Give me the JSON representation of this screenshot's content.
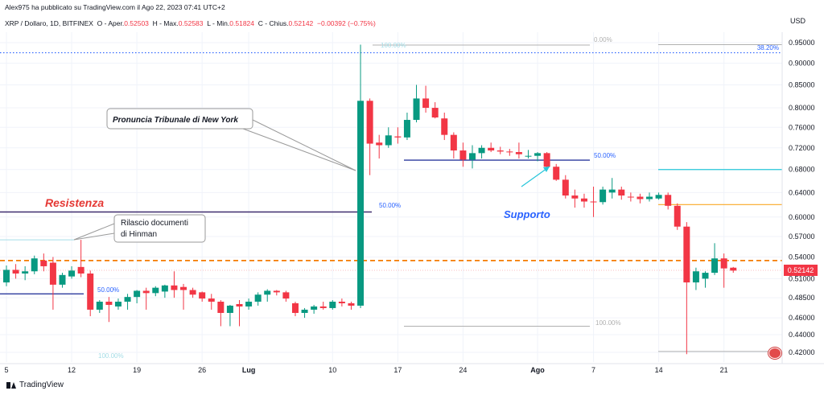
{
  "header": {
    "published": "Alex975 ha pubblicato su TradingView.com il Ago 22, 2023 07:41 UTC+2",
    "symbol": "XRP / Dollaro, 1D, BITFINEX",
    "open_label": "O - Aper.",
    "open_value": "0.52503",
    "high_label": "H - Max.",
    "high_value": "0.52583",
    "low_label": "L - Min.",
    "low_value": "0.51824",
    "close_label": "C - Chius.",
    "close_value": "0.52142",
    "change": "−0.00392 (−0.75%)"
  },
  "currency": "USD",
  "brand": "TradingView",
  "colors": {
    "up": "#089981",
    "down": "#f23645",
    "resistance": "#3f2c6e",
    "support": "#2c3a9e",
    "orange": "#f57c00",
    "annotation_blue": "#2962ff",
    "annotation_red": "#e53935",
    "cyan": "#26c6da",
    "gold": "#f9a825"
  },
  "chart_data": {
    "type": "candlestick",
    "symbol": "XRP / Dollaro",
    "timeframe": "1D",
    "y_axis": {
      "ticks": [
        "0.42000",
        "0.44000",
        "0.46000",
        "0.48500",
        "0.51000",
        "0.54000",
        "0.57000",
        "0.60000",
        "0.64000",
        "0.68000",
        "0.72000",
        "0.76000",
        "0.80000",
        "0.85000",
        "0.90000",
        "0.95000"
      ],
      "scale": "log",
      "last_price_label": "0.52142"
    },
    "x_axis": {
      "ticks": [
        {
          "label": "5",
          "day": 0
        },
        {
          "label": "12",
          "day": 7
        },
        {
          "label": "19",
          "day": 14
        },
        {
          "label": "26",
          "day": 21
        },
        {
          "label": "Lug",
          "day": 26
        },
        {
          "label": "10",
          "day": 35
        },
        {
          "label": "17",
          "day": 42
        },
        {
          "label": "24",
          "day": 49
        },
        {
          "label": "Ago",
          "day": 57
        },
        {
          "label": "7",
          "day": 63
        },
        {
          "label": "14",
          "day": 70
        },
        {
          "label": "21",
          "day": 77
        }
      ]
    },
    "candles": [
      {
        "o": 0.505,
        "h": 0.528,
        "l": 0.5,
        "c": 0.522
      },
      {
        "o": 0.522,
        "h": 0.53,
        "l": 0.51,
        "c": 0.517
      },
      {
        "o": 0.517,
        "h": 0.527,
        "l": 0.508,
        "c": 0.52
      },
      {
        "o": 0.52,
        "h": 0.542,
        "l": 0.516,
        "c": 0.538
      },
      {
        "o": 0.535,
        "h": 0.545,
        "l": 0.52,
        "c": 0.527
      },
      {
        "o": 0.532,
        "h": 0.54,
        "l": 0.47,
        "c": 0.502
      },
      {
        "o": 0.502,
        "h": 0.518,
        "l": 0.498,
        "c": 0.515
      },
      {
        "o": 0.513,
        "h": 0.527,
        "l": 0.51,
        "c": 0.521
      },
      {
        "o": 0.526,
        "h": 0.565,
        "l": 0.512,
        "c": 0.517
      },
      {
        "o": 0.517,
        "h": 0.521,
        "l": 0.462,
        "c": 0.47
      },
      {
        "o": 0.47,
        "h": 0.482,
        "l": 0.466,
        "c": 0.48
      },
      {
        "o": 0.48,
        "h": 0.486,
        "l": 0.455,
        "c": 0.476
      },
      {
        "o": 0.474,
        "h": 0.484,
        "l": 0.47,
        "c": 0.48
      },
      {
        "o": 0.48,
        "h": 0.49,
        "l": 0.47,
        "c": 0.486
      },
      {
        "o": 0.486,
        "h": 0.495,
        "l": 0.478,
        "c": 0.494
      },
      {
        "o": 0.494,
        "h": 0.498,
        "l": 0.47,
        "c": 0.491
      },
      {
        "o": 0.491,
        "h": 0.5,
        "l": 0.487,
        "c": 0.498
      },
      {
        "o": 0.493,
        "h": 0.502,
        "l": 0.485,
        "c": 0.501
      },
      {
        "o": 0.501,
        "h": 0.52,
        "l": 0.485,
        "c": 0.495
      },
      {
        "o": 0.499,
        "h": 0.503,
        "l": 0.47,
        "c": 0.495
      },
      {
        "o": 0.495,
        "h": 0.498,
        "l": 0.485,
        "c": 0.489
      },
      {
        "o": 0.492,
        "h": 0.493,
        "l": 0.48,
        "c": 0.484
      },
      {
        "o": 0.484,
        "h": 0.49,
        "l": 0.47,
        "c": 0.48
      },
      {
        "o": 0.48,
        "h": 0.482,
        "l": 0.45,
        "c": 0.466
      },
      {
        "o": 0.466,
        "h": 0.476,
        "l": 0.45,
        "c": 0.475
      },
      {
        "o": 0.477,
        "h": 0.482,
        "l": 0.45,
        "c": 0.474
      },
      {
        "o": 0.474,
        "h": 0.484,
        "l": 0.47,
        "c": 0.48
      },
      {
        "o": 0.48,
        "h": 0.492,
        "l": 0.475,
        "c": 0.489
      },
      {
        "o": 0.489,
        "h": 0.496,
        "l": 0.48,
        "c": 0.494
      },
      {
        "o": 0.494,
        "h": 0.495,
        "l": 0.488,
        "c": 0.492
      },
      {
        "o": 0.492,
        "h": 0.494,
        "l": 0.48,
        "c": 0.484
      },
      {
        "o": 0.478,
        "h": 0.48,
        "l": 0.462,
        "c": 0.466
      },
      {
        "o": 0.466,
        "h": 0.472,
        "l": 0.46,
        "c": 0.47
      },
      {
        "o": 0.47,
        "h": 0.476,
        "l": 0.465,
        "c": 0.474
      },
      {
        "o": 0.474,
        "h": 0.48,
        "l": 0.47,
        "c": 0.472
      },
      {
        "o": 0.472,
        "h": 0.482,
        "l": 0.47,
        "c": 0.48
      },
      {
        "o": 0.48,
        "h": 0.484,
        "l": 0.474,
        "c": 0.478
      },
      {
        "o": 0.478,
        "h": 0.48,
        "l": 0.47,
        "c": 0.475
      },
      {
        "o": 0.475,
        "h": 0.945,
        "l": 0.472,
        "c": 0.815
      },
      {
        "o": 0.815,
        "h": 0.82,
        "l": 0.67,
        "c": 0.728
      },
      {
        "o": 0.73,
        "h": 0.745,
        "l": 0.7,
        "c": 0.725
      },
      {
        "o": 0.725,
        "h": 0.76,
        "l": 0.72,
        "c": 0.744
      },
      {
        "o": 0.742,
        "h": 0.76,
        "l": 0.728,
        "c": 0.74
      },
      {
        "o": 0.74,
        "h": 0.79,
        "l": 0.735,
        "c": 0.775
      },
      {
        "o": 0.775,
        "h": 0.85,
        "l": 0.77,
        "c": 0.82
      },
      {
        "o": 0.82,
        "h": 0.848,
        "l": 0.79,
        "c": 0.8
      },
      {
        "o": 0.8,
        "h": 0.812,
        "l": 0.778,
        "c": 0.78
      },
      {
        "o": 0.778,
        "h": 0.79,
        "l": 0.735,
        "c": 0.745
      },
      {
        "o": 0.745,
        "h": 0.75,
        "l": 0.7,
        "c": 0.715
      },
      {
        "o": 0.715,
        "h": 0.73,
        "l": 0.685,
        "c": 0.698
      },
      {
        "o": 0.698,
        "h": 0.725,
        "l": 0.682,
        "c": 0.71
      },
      {
        "o": 0.71,
        "h": 0.725,
        "l": 0.7,
        "c": 0.72
      },
      {
        "o": 0.72,
        "h": 0.73,
        "l": 0.712,
        "c": 0.715
      },
      {
        "o": 0.715,
        "h": 0.722,
        "l": 0.708,
        "c": 0.713
      },
      {
        "o": 0.713,
        "h": 0.718,
        "l": 0.705,
        "c": 0.712
      },
      {
        "o": 0.712,
        "h": 0.73,
        "l": 0.7,
        "c": 0.708
      },
      {
        "o": 0.704,
        "h": 0.716,
        "l": 0.7,
        "c": 0.705
      },
      {
        "o": 0.705,
        "h": 0.712,
        "l": 0.695,
        "c": 0.71
      },
      {
        "o": 0.71,
        "h": 0.712,
        "l": 0.68,
        "c": 0.685
      },
      {
        "o": 0.685,
        "h": 0.69,
        "l": 0.66,
        "c": 0.662
      },
      {
        "o": 0.662,
        "h": 0.67,
        "l": 0.63,
        "c": 0.635
      },
      {
        "o": 0.635,
        "h": 0.645,
        "l": 0.615,
        "c": 0.63
      },
      {
        "o": 0.63,
        "h": 0.638,
        "l": 0.615,
        "c": 0.625
      },
      {
        "o": 0.625,
        "h": 0.65,
        "l": 0.6,
        "c": 0.624
      },
      {
        "o": 0.624,
        "h": 0.65,
        "l": 0.62,
        "c": 0.645
      },
      {
        "o": 0.64,
        "h": 0.665,
        "l": 0.63,
        "c": 0.645
      },
      {
        "o": 0.645,
        "h": 0.65,
        "l": 0.628,
        "c": 0.635
      },
      {
        "o": 0.633,
        "h": 0.64,
        "l": 0.625,
        "c": 0.632
      },
      {
        "o": 0.633,
        "h": 0.638,
        "l": 0.622,
        "c": 0.629
      },
      {
        "o": 0.629,
        "h": 0.64,
        "l": 0.625,
        "c": 0.633
      },
      {
        "o": 0.63,
        "h": 0.64,
        "l": 0.628,
        "c": 0.636
      },
      {
        "o": 0.636,
        "h": 0.64,
        "l": 0.612,
        "c": 0.618
      },
      {
        "o": 0.618,
        "h": 0.622,
        "l": 0.58,
        "c": 0.585
      },
      {
        "o": 0.585,
        "h": 0.592,
        "l": 0.418,
        "c": 0.505
      },
      {
        "o": 0.505,
        "h": 0.525,
        "l": 0.495,
        "c": 0.52
      },
      {
        "o": 0.51,
        "h": 0.52,
        "l": 0.498,
        "c": 0.518
      },
      {
        "o": 0.518,
        "h": 0.56,
        "l": 0.515,
        "c": 0.538
      },
      {
        "o": 0.538,
        "h": 0.545,
        "l": 0.498,
        "c": 0.524
      },
      {
        "o": 0.525,
        "h": 0.526,
        "l": 0.518,
        "c": 0.521
      }
    ],
    "lines": [
      {
        "name": "dotted-high",
        "value": 0.925
      },
      {
        "name": "orange-dashed",
        "value": 0.535
      },
      {
        "name": "cyan-fib-low",
        "value": 0.565
      },
      {
        "name": "resistance",
        "value": 0.608
      },
      {
        "name": "support",
        "value": 0.697
      },
      {
        "name": "cyan-right",
        "value": 0.68
      },
      {
        "name": "gold-right",
        "value": 0.62
      },
      {
        "name": "blue-left",
        "value": 0.49
      }
    ],
    "fib_labels": [
      "100.00%",
      "0.00%",
      "38.20%",
      "50.00%",
      "50.00%",
      "50.00%",
      "100.00%",
      "100.00%"
    ],
    "annotations": {
      "resistance": "Resistenza",
      "support": "Supporto",
      "court": "Pronuncia Tribunale di New York",
      "hinman_line1": "Rilascio documenti",
      "hinman_line2": "di Hinman"
    }
  }
}
